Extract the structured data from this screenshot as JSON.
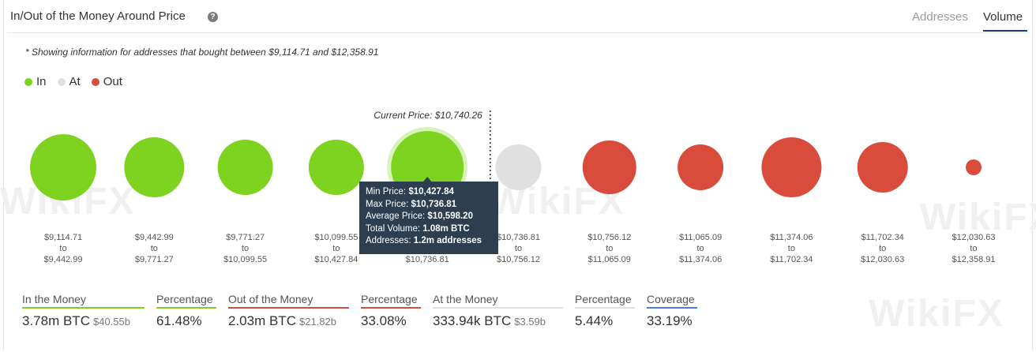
{
  "header": {
    "title": "In/Out of the Money Around Price",
    "help_glyph": "?",
    "tabs": [
      {
        "label": "Addresses",
        "active": false
      },
      {
        "label": "Volume",
        "active": true
      }
    ]
  },
  "note": "* Showing information for addresses that bought between $9,114.71 and $12,358.91",
  "legend": [
    {
      "label": "In",
      "color": "#7ed321"
    },
    {
      "label": "At",
      "color": "#e0e0e0"
    },
    {
      "label": "Out",
      "color": "#d94b3a"
    }
  ],
  "colors": {
    "in": "#7ed321",
    "at": "#e0e0e0",
    "out": "#d94b3a"
  },
  "chart_data": {
    "type": "bubble",
    "current_price_label": "Current Price: $10,740.26",
    "current_price": 10740.26,
    "buckets": [
      {
        "from": "$9,114.71",
        "to": "$9,442.99",
        "status": "in",
        "size": 42
      },
      {
        "from": "$9,442.99",
        "to": "$9,771.27",
        "status": "in",
        "size": 38
      },
      {
        "from": "$9,771.27",
        "to": "$10,099.55",
        "status": "in",
        "size": 35
      },
      {
        "from": "$10,099.55",
        "to": "$10,427.84",
        "status": "in",
        "size": 35
      },
      {
        "from": "$10,427.84",
        "to": "$10,736.81",
        "status": "in",
        "size": 46,
        "highlighted": true
      },
      {
        "from": "$10,736.81",
        "to": "$10,756.12",
        "status": "at",
        "size": 29
      },
      {
        "from": "$10,756.12",
        "to": "$11,065.09",
        "status": "out",
        "size": 34
      },
      {
        "from": "$11,065.09",
        "to": "$11,374.06",
        "status": "out",
        "size": 29
      },
      {
        "from": "$11,374.06",
        "to": "$11,702.34",
        "status": "out",
        "size": 38
      },
      {
        "from": "$11,702.34",
        "to": "$12,030.63",
        "status": "out",
        "size": 32
      },
      {
        "from": "$12,030.63",
        "to": "$12,358.91",
        "status": "out",
        "size": 10
      }
    ],
    "range_joiner": "to"
  },
  "tooltip": {
    "min_label": "Min Price: ",
    "min_value": "$10,427.84",
    "max_label": "Max Price: ",
    "max_value": "$10,736.81",
    "avg_label": "Average Price: ",
    "avg_value": "$10,598.20",
    "vol_label": "Total Volume: ",
    "vol_value": "1.08m BTC",
    "addr_label": "Addresses: ",
    "addr_value": "1.2m addresses"
  },
  "stats": [
    {
      "label": "In the Money",
      "value": "3.78m BTC",
      "sub": "$40.55b",
      "color": "#7ed321"
    },
    {
      "label": "Percentage",
      "value": "61.48%",
      "sub": "",
      "color": "#7ed321"
    },
    {
      "label": "Out of the Money",
      "value": "2.03m BTC",
      "sub": "$21.82b",
      "color": "#d94b3a"
    },
    {
      "label": "Percentage",
      "value": "33.08%",
      "sub": "",
      "color": "#d94b3a"
    },
    {
      "label": "At the Money",
      "value": "333.94k BTC",
      "sub": "$3.59b",
      "color": "#e0e0e0"
    },
    {
      "label": "Percentage",
      "value": "5.44%",
      "sub": "",
      "color": "#e0e0e0"
    },
    {
      "label": "Coverage",
      "value": "33.19%",
      "sub": "",
      "color": "#4a7fd4"
    }
  ],
  "watermarks": [
    "WikiFX",
    "WikiFX",
    "WikiFX",
    "WikiFX"
  ]
}
